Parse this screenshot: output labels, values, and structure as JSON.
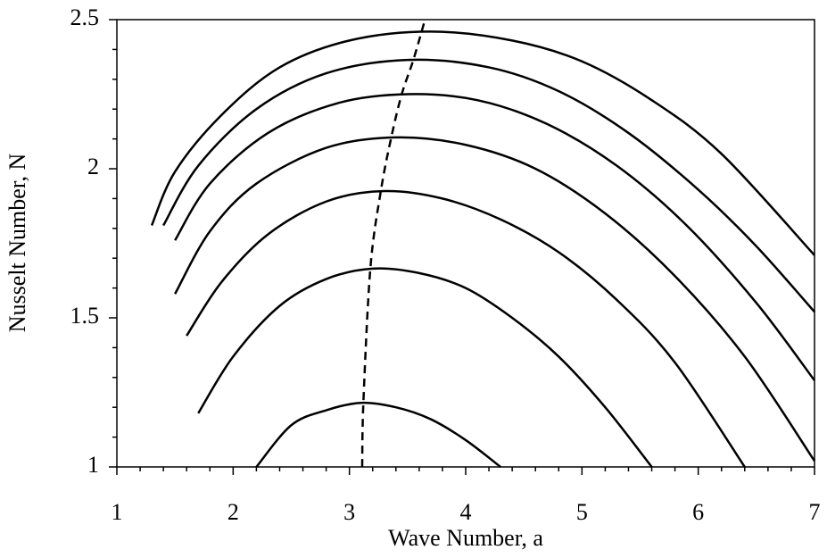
{
  "chart_data": {
    "type": "line",
    "xlabel": "Wave Number, a",
    "ylabel": "Nusselt Number, N",
    "xlim": [
      1,
      7
    ],
    "ylim": [
      1,
      2.5
    ],
    "xticks": [
      1,
      2,
      3,
      4,
      5,
      6,
      7
    ],
    "yticks": [
      1,
      1.5,
      2,
      2.5
    ],
    "xminorticks": [
      1.2,
      1.4,
      1.6,
      1.8,
      2.2,
      2.4,
      2.6,
      2.8,
      3.2,
      3.4,
      3.6,
      3.8,
      4.2,
      4.4,
      4.6,
      4.8,
      5.2,
      5.4,
      5.6,
      5.8,
      6.2,
      6.4,
      6.6,
      6.8
    ],
    "yminorticks": [
      1.1,
      1.2,
      1.3,
      1.4,
      1.6,
      1.7,
      1.8,
      1.9,
      2.1,
      2.2,
      2.3,
      2.4
    ],
    "grid": false,
    "series": [
      {
        "color": "#000000",
        "dashed": false,
        "x": [
          2.2,
          2.5,
          2.8,
          3.1,
          3.4,
          3.7,
          4.0,
          4.3
        ],
        "values": [
          1.0,
          1.14,
          1.19,
          1.215,
          1.2,
          1.16,
          1.09,
          1.0
        ]
      },
      {
        "color": "#000000",
        "dashed": false,
        "x": [
          1.7,
          2.0,
          2.4,
          2.8,
          3.2,
          3.6,
          4.0,
          4.4,
          4.8,
          5.2,
          5.6
        ],
        "values": [
          1.18,
          1.37,
          1.54,
          1.63,
          1.665,
          1.65,
          1.6,
          1.5,
          1.37,
          1.2,
          1.0
        ]
      },
      {
        "color": "#000000",
        "dashed": false,
        "x": [
          1.6,
          1.9,
          2.3,
          2.8,
          3.3,
          3.8,
          4.3,
          4.8,
          5.3,
          5.8,
          6.4
        ],
        "values": [
          1.44,
          1.62,
          1.78,
          1.89,
          1.925,
          1.9,
          1.83,
          1.72,
          1.56,
          1.35,
          1.0
        ]
      },
      {
        "color": "#000000",
        "dashed": false,
        "x": [
          1.5,
          1.8,
          2.2,
          2.8,
          3.4,
          4.0,
          4.6,
          5.2,
          5.8,
          6.4,
          7.0
        ],
        "values": [
          1.58,
          1.79,
          1.95,
          2.07,
          2.105,
          2.08,
          2.0,
          1.85,
          1.64,
          1.37,
          1.02
        ]
      },
      {
        "color": "#000000",
        "dashed": false,
        "x": [
          1.5,
          1.8,
          2.3,
          2.9,
          3.5,
          4.1,
          4.7,
          5.3,
          5.9,
          6.5,
          7.0
        ],
        "values": [
          1.76,
          1.95,
          2.12,
          2.22,
          2.25,
          2.23,
          2.15,
          2.01,
          1.81,
          1.55,
          1.29
        ]
      },
      {
        "color": "#000000",
        "dashed": false,
        "x": [
          1.4,
          1.7,
          2.2,
          2.8,
          3.5,
          4.2,
          4.8,
          5.4,
          6.0,
          6.5,
          7.0
        ],
        "values": [
          1.81,
          2.01,
          2.2,
          2.32,
          2.365,
          2.34,
          2.26,
          2.12,
          1.93,
          1.74,
          1.52
        ]
      },
      {
        "color": "#000000",
        "dashed": false,
        "x": [
          1.3,
          1.5,
          1.9,
          2.4,
          3.0,
          3.7,
          4.4,
          5.0,
          5.6,
          6.2,
          7.0
        ],
        "values": [
          1.81,
          1.99,
          2.18,
          2.34,
          2.43,
          2.46,
          2.43,
          2.36,
          2.23,
          2.05,
          1.71
        ]
      },
      {
        "color": "#000000",
        "dashed": true,
        "x": [
          3.11,
          3.12,
          3.18,
          3.27,
          3.36,
          3.45,
          3.55,
          3.65
        ],
        "values": [
          1.0,
          1.215,
          1.665,
          1.925,
          2.105,
          2.25,
          2.365,
          2.5
        ]
      }
    ]
  }
}
